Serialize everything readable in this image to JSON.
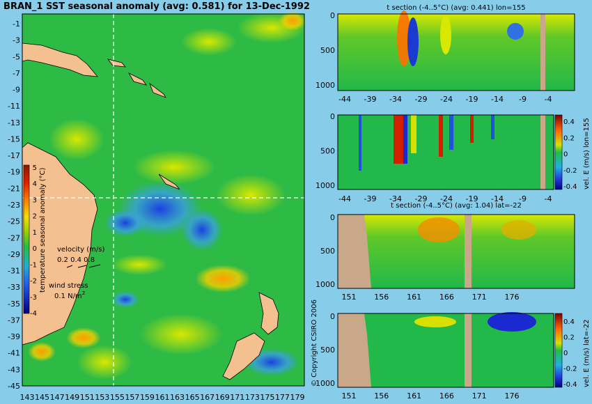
{
  "map": {
    "title": "BRAN_1 SST seasonal anomaly (avg: 0.581) for 13-Dec-1992",
    "lat_ticks": [
      "-1",
      "-3",
      "-5",
      "-7",
      "-9",
      "-11",
      "-13",
      "-15",
      "-17",
      "-19",
      "-21",
      "-23",
      "-25",
      "-27",
      "-29",
      "-31",
      "-33",
      "-35",
      "-37",
      "-39",
      "-41",
      "-43",
      "-45"
    ],
    "lon_ticks": [
      "143",
      "145",
      "147",
      "149",
      "151",
      "153",
      "155",
      "157",
      "159",
      "161",
      "163",
      "165",
      "167",
      "169",
      "171",
      "173",
      "175",
      "177",
      "179"
    ],
    "colorbar_label": "temperature seasonal anomaly (°C)",
    "colorbar_ticks": [
      "5",
      "4",
      "3",
      "2",
      "1",
      "0",
      "-1",
      "-2",
      "-3",
      "-4"
    ],
    "velocity_label": "velocity (m/s)",
    "velocity_scale": "0.2 0.4 0.8",
    "wind_label": "wind stress",
    "wind_scale": "0.1 N/m",
    "wind_exp": "2",
    "colors": {
      "land": "#f5c08f",
      "ocean_bg": "#27b84a"
    }
  },
  "copyright": "© Copyright CSIRO 2006",
  "panels": {
    "p1": {
      "title": "t section (-4..5°C) (avg: 0.441) lon=155",
      "x_ticks": [
        "-44",
        "-39",
        "-34",
        "-29",
        "-24",
        "-19",
        "-14",
        "-9",
        "-4"
      ],
      "y_ticks": [
        "0",
        "500",
        "1000"
      ]
    },
    "p2": {
      "title": "",
      "x_ticks": [
        "-44",
        "-39",
        "-34",
        "-29",
        "-24",
        "-19",
        "-14",
        "-9",
        "-4"
      ],
      "y_ticks": [
        "0",
        "500",
        "1000"
      ],
      "cbar_label": "vel. E (m/s) lon=155",
      "cbar_ticks": [
        "0.4",
        "0.2",
        "0",
        "-0.2",
        "-0.4"
      ]
    },
    "p3": {
      "title": "t section (-4..5°C) (avg: 1.04) lat=-22",
      "x_ticks": [
        "151",
        "156",
        "161",
        "166",
        "171",
        "176"
      ],
      "y_ticks": [
        "0",
        "500",
        "1000"
      ]
    },
    "p4": {
      "title": "",
      "x_ticks": [
        "151",
        "156",
        "161",
        "166",
        "171",
        "176"
      ],
      "y_ticks": [
        "0",
        "500",
        "1000"
      ],
      "cbar_label": "vel. E (m/s) lat=-22",
      "cbar_ticks": [
        "0.4",
        "0.2",
        "0",
        "-0.2",
        "-0.4"
      ]
    }
  },
  "chart_data": [
    {
      "type": "heatmap",
      "title": "BRAN_1 SST seasonal anomaly (avg: 0.581) for 13-Dec-1992",
      "xlabel": "",
      "ylabel": "",
      "xlim": [
        143,
        180
      ],
      "ylim": [
        -45,
        0
      ],
      "colorbar": {
        "label": "temperature seasonal anomaly (°C)",
        "range": [
          -4,
          5
        ]
      },
      "crosshair": {
        "lon": 155,
        "lat": -22
      }
    },
    {
      "type": "heatmap",
      "title": "t section (-4..5°C) (avg: 0.441) lon=155",
      "xlim": [
        -45,
        0
      ],
      "ylim": [
        1050,
        0
      ]
    },
    {
      "type": "heatmap",
      "title": "",
      "xlim": [
        -45,
        0
      ],
      "ylim": [
        1050,
        0
      ],
      "colorbar": {
        "label": "vel. E (m/s) lon=155",
        "range": [
          -0.4,
          0.4
        ]
      }
    },
    {
      "type": "heatmap",
      "title": "t section (-4..5°C) (avg: 1.04) lat=-22",
      "xlim": [
        150,
        180
      ],
      "ylim": [
        1050,
        0
      ]
    },
    {
      "type": "heatmap",
      "title": "",
      "xlim": [
        150,
        180
      ],
      "ylim": [
        1050,
        0
      ],
      "colorbar": {
        "label": "vel. E (m/s) lat=-22",
        "range": [
          -0.4,
          0.4
        ]
      }
    }
  ]
}
